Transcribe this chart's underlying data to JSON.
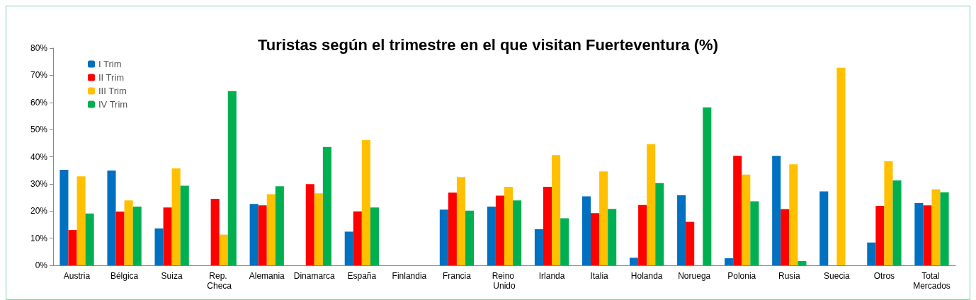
{
  "chart_data": {
    "type": "bar",
    "title": "Turistas según el trimestre en el que visitan Fuerteventura (%)",
    "categories": [
      "Austria",
      "Bélgica",
      "Suiza",
      "Rep. Checa",
      "Alemania",
      "Dinamarca",
      "España",
      "Finlandia",
      "Francia",
      "Reino Unido",
      "Irlanda",
      "Italia",
      "Holanda",
      "Noruega",
      "Polonia",
      "Rusia",
      "Suecia",
      "Otros",
      "Total Mercados"
    ],
    "series": [
      {
        "name": "I Trim",
        "color": "#0070c0",
        "values": [
          35.2,
          34.9,
          13.6,
          null,
          22.6,
          null,
          12.4,
          null,
          20.5,
          21.6,
          13.3,
          25.4,
          2.8,
          25.8,
          2.6,
          40.3,
          27.2,
          8.4,
          22.9
        ]
      },
      {
        "name": "II Trim",
        "color": "#ff0000",
        "values": [
          13.0,
          19.8,
          21.3,
          24.5,
          22.1,
          29.9,
          19.9,
          null,
          26.8,
          25.7,
          28.9,
          19.2,
          22.2,
          16.0,
          40.3,
          20.7,
          null,
          21.9,
          22.1
        ]
      },
      {
        "name": "III Trim",
        "color": "#ffc000",
        "values": [
          32.8,
          23.9,
          35.7,
          11.3,
          26.2,
          26.5,
          46.1,
          null,
          32.5,
          28.9,
          40.6,
          34.6,
          44.6,
          null,
          33.4,
          37.2,
          72.8,
          38.4,
          28.0
        ]
      },
      {
        "name": "IV Trim",
        "color": "#00b050",
        "values": [
          19.1,
          21.6,
          29.3,
          64.2,
          29.1,
          43.6,
          21.3,
          null,
          20.1,
          23.9,
          17.3,
          20.8,
          30.3,
          58.2,
          23.6,
          1.6,
          null,
          31.3,
          26.9
        ]
      }
    ],
    "ylim": [
      0,
      80
    ],
    "yticks": [
      {
        "value": 0,
        "label": "0%"
      },
      {
        "value": 10,
        "label": "10%"
      },
      {
        "value": 20,
        "label": "20%"
      },
      {
        "value": 30,
        "label": "30%"
      },
      {
        "value": 40,
        "label": "40%"
      },
      {
        "value": 50,
        "label": "50%"
      },
      {
        "value": 60,
        "label": "60%"
      },
      {
        "value": 70,
        "label": "70%"
      },
      {
        "value": 80,
        "label": "80%"
      }
    ],
    "grid": false,
    "legend": "top left"
  }
}
